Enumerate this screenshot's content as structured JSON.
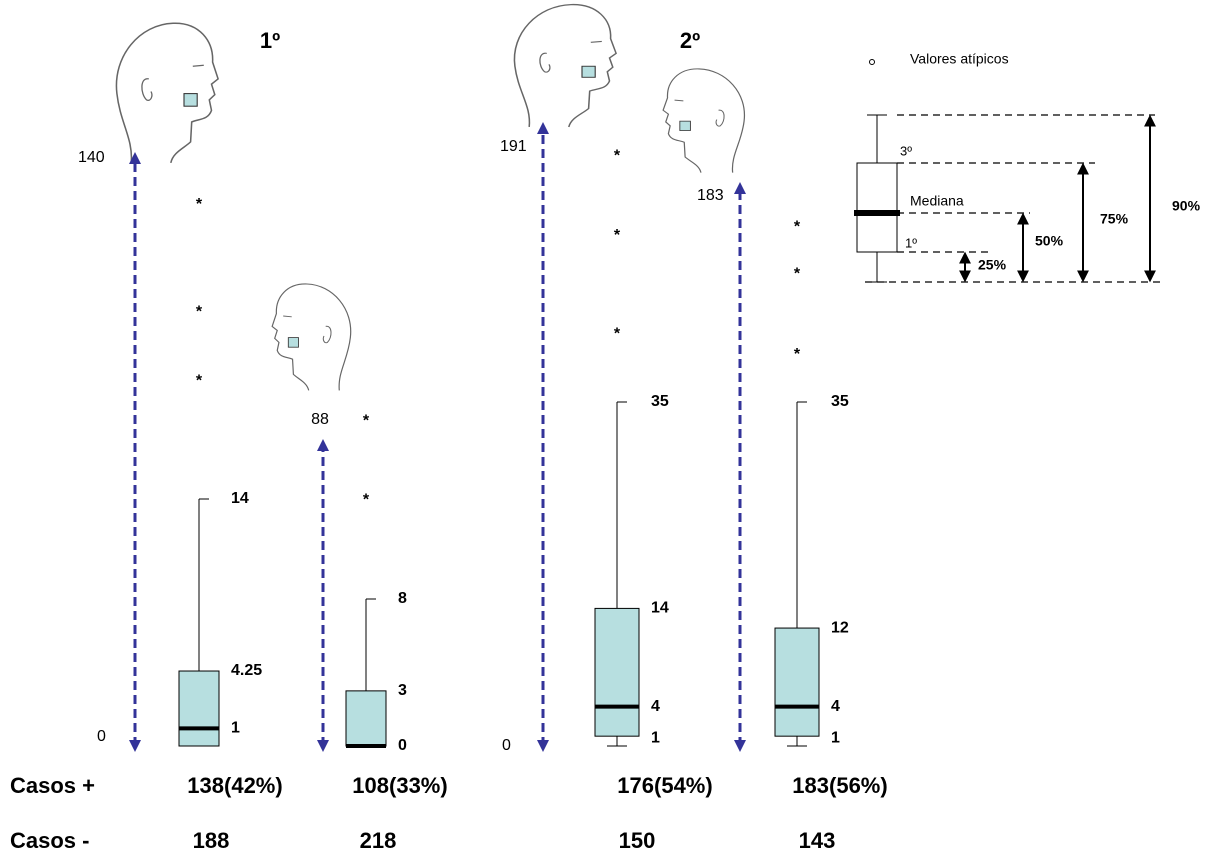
{
  "chart_data": {
    "type": "box",
    "group_titles": [
      "1º",
      "2º"
    ],
    "box_color": "#b7dfe0",
    "arrow_color": "#333399",
    "outlier_symbol": "*",
    "boxes": [
      {
        "range_max": 140,
        "range_min": 0,
        "high": 14,
        "q3": 4.25,
        "median": 1,
        "outliers": [
          30.9,
          24.8,
          20.9
        ]
      },
      {
        "range_max": 88,
        "high": 8,
        "q3": 3,
        "median": 0,
        "outliers": [
          17.9,
          13.6
        ]
      },
      {
        "range_max": 191,
        "range_min": 0,
        "high": 35,
        "q3": 14,
        "median": 4,
        "q1": 1,
        "outliers": [
          60.4,
          52.3,
          42.3
        ]
      },
      {
        "range_max": 183,
        "high": 35,
        "q3": 12,
        "median": 4,
        "q1": 1,
        "outliers": [
          53.2,
          48.4,
          40.2
        ]
      }
    ],
    "legend": {
      "outlier_label": "Valores atípicos",
      "q3_label": "3º",
      "median_label": "Mediana",
      "q1_label": "1º",
      "percent_labels": [
        "25%",
        "50%",
        "75%",
        "90%"
      ]
    },
    "rows": [
      {
        "label": "Casos +",
        "values": [
          "138(42%)",
          "108(33%)",
          "176(54%)",
          "183(56%)"
        ]
      },
      {
        "label": "Casos -",
        "values": [
          "188",
          "218",
          "150",
          "143"
        ]
      }
    ]
  }
}
